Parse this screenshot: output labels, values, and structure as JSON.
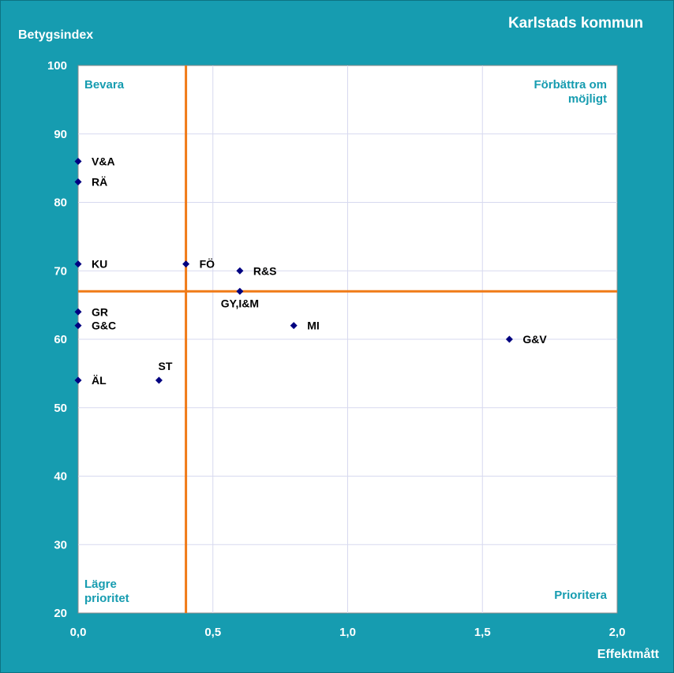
{
  "title": "Karlstads kommun",
  "quadrants": {
    "top_left": "Bevara",
    "top_right_line1": "Förbättra om",
    "top_right_line2": "möjligt",
    "bottom_left_line1": "Lägre",
    "bottom_left_line2": "prioritet",
    "bottom_right": "Prioritera"
  },
  "colors": {
    "background": "#169cb0",
    "plot_area": "#ffffff",
    "gridline": "#d7d9ef",
    "reference_line": "#f07a17",
    "marker": "#000080",
    "quadrant_text": "#169cb0"
  },
  "chart_data": {
    "type": "scatter",
    "title": "Karlstads kommun",
    "xlabel": "Effektmått",
    "ylabel": "Betygsindex",
    "xlim": [
      0,
      2
    ],
    "ylim": [
      20,
      100
    ],
    "x_ticks": [
      "0,0",
      "0,5",
      "1,0",
      "1,5",
      "2,0"
    ],
    "x_tick_values": [
      0,
      0.5,
      1.0,
      1.5,
      2.0
    ],
    "y_ticks": [
      "20",
      "30",
      "40",
      "50",
      "60",
      "70",
      "80",
      "90",
      "100"
    ],
    "y_tick_values": [
      20,
      30,
      40,
      50,
      60,
      70,
      80,
      90,
      100
    ],
    "grid": true,
    "reference_lines": {
      "x": 0.4,
      "y": 67
    },
    "points": [
      {
        "label": "V&A",
        "x": 0.0,
        "y": 86
      },
      {
        "label": "RÄ",
        "x": 0.0,
        "y": 83
      },
      {
        "label": "KU",
        "x": 0.0,
        "y": 71
      },
      {
        "label": "GR",
        "x": 0.0,
        "y": 64
      },
      {
        "label": "G&C",
        "x": 0.0,
        "y": 62
      },
      {
        "label": "ÄL",
        "x": 0.0,
        "y": 54
      },
      {
        "label": "ST",
        "x": 0.3,
        "y": 54
      },
      {
        "label": "FÖ",
        "x": 0.4,
        "y": 71
      },
      {
        "label": "R&S",
        "x": 0.6,
        "y": 70
      },
      {
        "label": "GY,I&M",
        "x": 0.6,
        "y": 67
      },
      {
        "label": "MI",
        "x": 0.8,
        "y": 62
      },
      {
        "label": "G&V",
        "x": 1.6,
        "y": 60
      }
    ]
  }
}
